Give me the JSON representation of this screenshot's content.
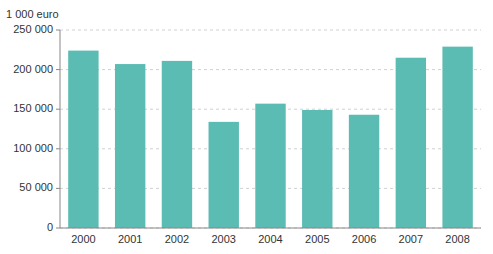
{
  "chart_data": {
    "type": "bar",
    "ylabel": "1 000 euro",
    "categories": [
      "2000",
      "2001",
      "2002",
      "2003",
      "2004",
      "2005",
      "2006",
      "2007",
      "2008"
    ],
    "values": [
      224000,
      207000,
      211000,
      134000,
      157000,
      149000,
      143000,
      215000,
      229000
    ],
    "color": "#5bbcb4",
    "ylim": [
      0,
      250000
    ],
    "yticks": [
      0,
      {
        "value": 50000,
        "label": "50 000"
      },
      {
        "value": 100000,
        "label": "100 000"
      },
      {
        "value": 150000,
        "label": "150 000"
      },
      {
        "value": 200000,
        "label": "200 000"
      },
      {
        "value": 250000,
        "label": "250 000"
      }
    ],
    "grid": true
  }
}
